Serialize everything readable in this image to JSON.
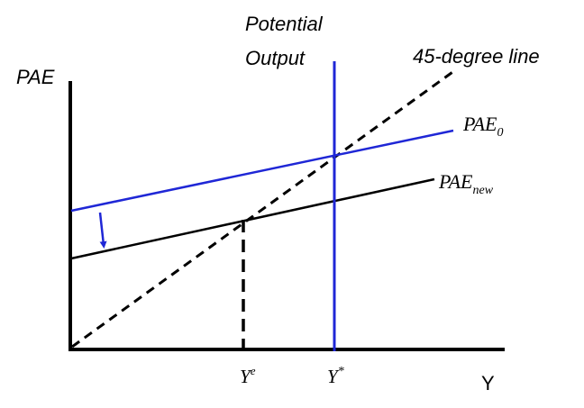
{
  "labels": {
    "y_axis": "PAE",
    "x_axis": "Y",
    "potential_line1": "Potential",
    "potential_line2": "Output",
    "forty_five": "45-degree line",
    "pae0_main": "PAE",
    "pae0_sub": "0",
    "paenew_main": "PAE",
    "paenew_sub": "new",
    "ye_main": "Y",
    "ye_sup": "e",
    "ystar_main": "Y",
    "ystar_sup": "*"
  },
  "colors": {
    "axis": "#000000",
    "pae0": "#1f27d6",
    "paenew": "#000000",
    "potential_output": "#1f27d6",
    "shift_arrow": "#1f27d6"
  }
}
